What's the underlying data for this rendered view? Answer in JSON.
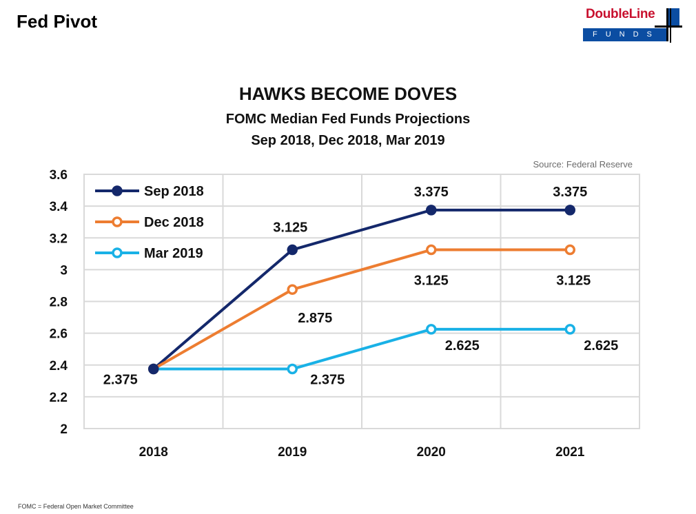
{
  "page": {
    "title": "Fed Pivot",
    "footnote": "FOMC = Federal Open Market Committee"
  },
  "logo": {
    "name": "DoubleLine",
    "sub": "FUNDS",
    "brand_red": "#c8102e",
    "brand_blue": "#0b4da2"
  },
  "chart_data": {
    "type": "line",
    "title": "HAWKS BECOME DOVES",
    "subtitle": "FOMC Median Fed Funds Projections",
    "subtitle2": "Sep 2018, Dec 2018, Mar 2019",
    "source": "Source: Federal Reserve",
    "categories": [
      "2018",
      "2019",
      "2020",
      "2021"
    ],
    "ylim": [
      2,
      3.6
    ],
    "yticks": [
      2,
      2.2,
      2.4,
      2.6,
      2.8,
      3,
      3.2,
      3.4,
      3.6
    ],
    "ytick_labels": [
      "2",
      "2.2",
      "2.4",
      "2.6",
      "2.8",
      "3",
      "3.2",
      "3.4",
      "3.6"
    ],
    "grid": true,
    "legend_position": "top-left",
    "series": [
      {
        "name": "Sep 2018",
        "color": "#14286b",
        "marker_fill": "#14286b",
        "values": [
          2.375,
          3.125,
          3.375,
          3.375
        ],
        "labels": [
          "",
          "3.125",
          "3.375",
          "3.375"
        ]
      },
      {
        "name": "Dec 2018",
        "color": "#ed7d31",
        "marker_fill": "#ffffff",
        "values": [
          2.375,
          2.875,
          3.125,
          3.125
        ],
        "labels": [
          "",
          "2.875",
          "3.125",
          "3.125"
        ]
      },
      {
        "name": "Mar 2019",
        "color": "#19b1e6",
        "marker_fill": "#ffffff",
        "values": [
          2.375,
          2.375,
          2.625,
          2.625
        ],
        "labels": [
          "2.375",
          "2.375",
          "2.625",
          "2.625"
        ]
      }
    ]
  }
}
